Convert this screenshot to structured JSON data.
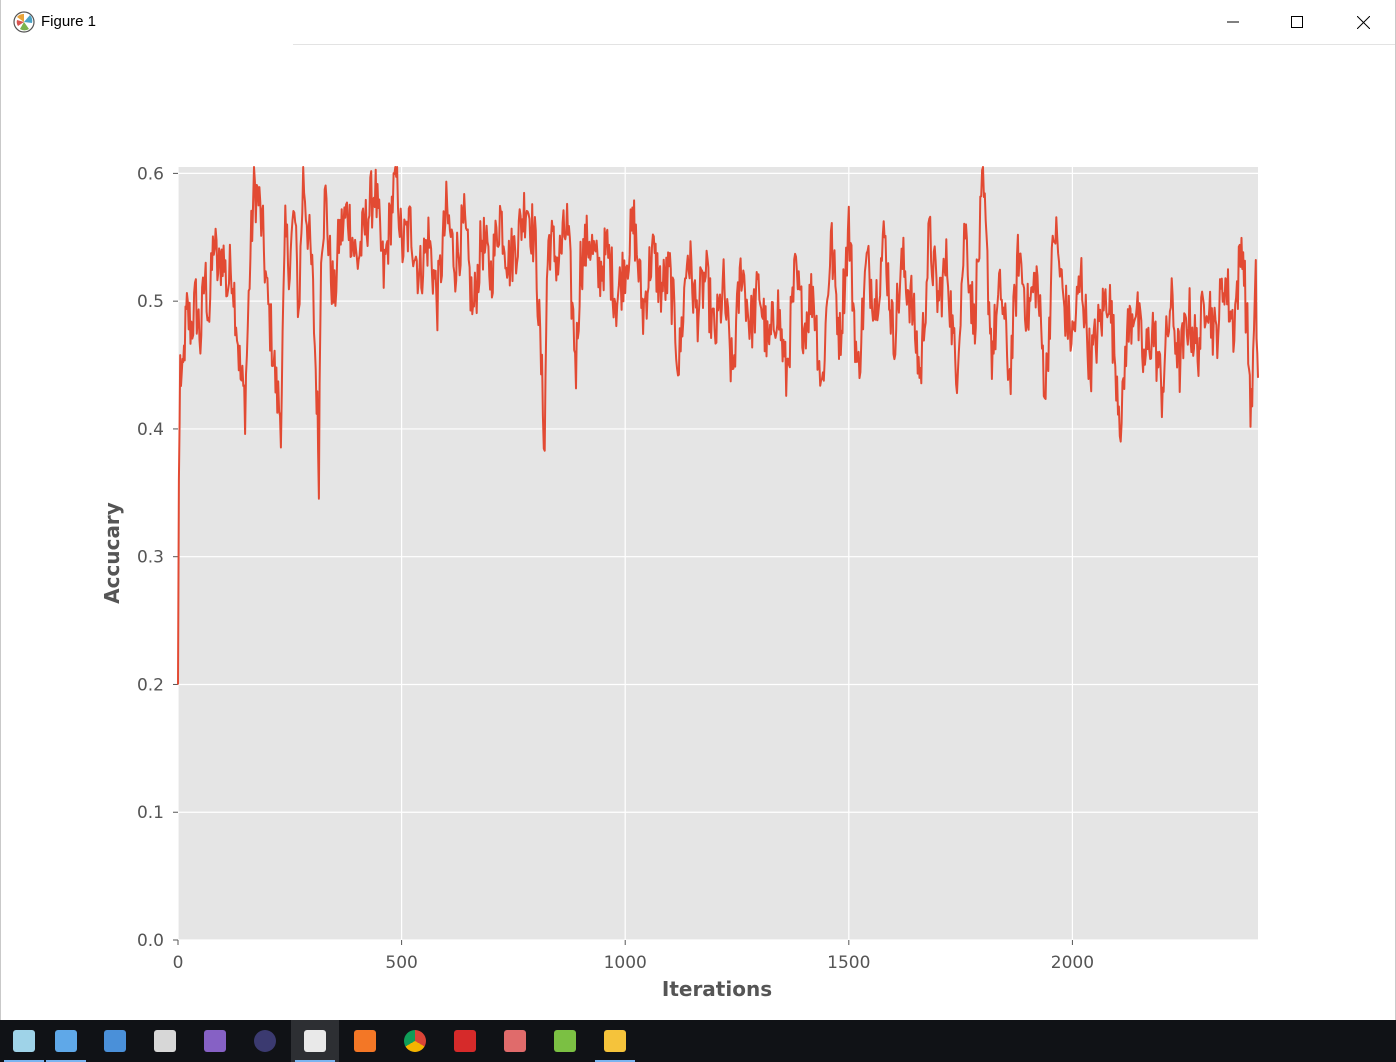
{
  "window": {
    "title": "Figure 1",
    "controls": {
      "minimize": "minimize",
      "maximize": "maximize",
      "close": "close"
    }
  },
  "chart_data": {
    "type": "line",
    "title": "",
    "xlabel": "Iterations",
    "ylabel": "Accucary",
    "xlim": [
      0,
      2415
    ],
    "ylim": [
      0.0,
      0.605
    ],
    "xticks": [
      0,
      500,
      1000,
      1500,
      2000
    ],
    "yticks": [
      0.0,
      0.1,
      0.2,
      0.3,
      0.4,
      0.5,
      0.6
    ],
    "xtick_labels": [
      "0",
      "500",
      "1000",
      "1500",
      "2000"
    ],
    "ytick_labels": [
      "0.0",
      "0.1",
      "0.2",
      "0.3",
      "0.4",
      "0.5",
      "0.6"
    ],
    "grid": true,
    "style": "ggplot",
    "series_color": "#e24a33",
    "series": [
      {
        "name": "",
        "x": [
          0,
          2,
          5,
          10,
          15,
          20,
          30,
          40,
          50,
          60,
          70,
          80,
          90,
          100,
          110,
          120,
          130,
          140,
          150,
          160,
          170,
          180,
          190,
          200,
          210,
          220,
          230,
          240,
          250,
          260,
          270,
          280,
          290,
          300,
          310,
          315,
          320,
          330,
          340,
          350,
          360,
          380,
          400,
          420,
          440,
          460,
          480,
          490,
          500,
          520,
          540,
          560,
          580,
          600,
          620,
          640,
          660,
          680,
          700,
          720,
          740,
          760,
          780,
          800,
          820,
          825,
          830,
          850,
          870,
          890,
          900,
          920,
          940,
          960,
          980,
          1000,
          1020,
          1040,
          1060,
          1080,
          1100,
          1120,
          1140,
          1160,
          1180,
          1200,
          1220,
          1240,
          1260,
          1280,
          1300,
          1320,
          1340,
          1360,
          1380,
          1400,
          1420,
          1440,
          1460,
          1480,
          1500,
          1520,
          1540,
          1560,
          1580,
          1600,
          1620,
          1640,
          1660,
          1680,
          1700,
          1720,
          1740,
          1760,
          1780,
          1800,
          1820,
          1840,
          1860,
          1880,
          1900,
          1920,
          1940,
          1960,
          1980,
          2000,
          2020,
          2040,
          2060,
          2080,
          2100,
          2110,
          2120,
          2140,
          2160,
          2180,
          2200,
          2220,
          2240,
          2260,
          2280,
          2300,
          2320,
          2340,
          2360,
          2380,
          2395,
          2400,
          2410,
          2415
        ],
        "y": [
          0.2,
          0.36,
          0.45,
          0.43,
          0.47,
          0.49,
          0.48,
          0.5,
          0.47,
          0.52,
          0.49,
          0.55,
          0.52,
          0.54,
          0.51,
          0.53,
          0.49,
          0.44,
          0.42,
          0.52,
          0.59,
          0.58,
          0.55,
          0.5,
          0.47,
          0.43,
          0.41,
          0.55,
          0.53,
          0.57,
          0.49,
          0.6,
          0.56,
          0.52,
          0.43,
          0.37,
          0.55,
          0.58,
          0.53,
          0.5,
          0.55,
          0.57,
          0.53,
          0.56,
          0.59,
          0.52,
          0.58,
          0.6,
          0.54,
          0.56,
          0.52,
          0.55,
          0.5,
          0.57,
          0.53,
          0.56,
          0.49,
          0.55,
          0.52,
          0.57,
          0.53,
          0.55,
          0.58,
          0.54,
          0.39,
          0.52,
          0.55,
          0.53,
          0.56,
          0.45,
          0.53,
          0.55,
          0.52,
          0.54,
          0.5,
          0.53,
          0.56,
          0.49,
          0.54,
          0.51,
          0.52,
          0.45,
          0.54,
          0.49,
          0.52,
          0.47,
          0.51,
          0.44,
          0.53,
          0.48,
          0.51,
          0.46,
          0.5,
          0.44,
          0.52,
          0.48,
          0.51,
          0.43,
          0.55,
          0.47,
          0.56,
          0.44,
          0.53,
          0.5,
          0.55,
          0.47,
          0.53,
          0.5,
          0.44,
          0.55,
          0.5,
          0.53,
          0.44,
          0.56,
          0.48,
          0.59,
          0.46,
          0.51,
          0.44,
          0.54,
          0.49,
          0.52,
          0.43,
          0.56,
          0.5,
          0.47,
          0.52,
          0.45,
          0.48,
          0.51,
          0.44,
          0.4,
          0.47,
          0.5,
          0.45,
          0.48,
          0.43,
          0.5,
          0.45,
          0.49,
          0.46,
          0.51,
          0.47,
          0.52,
          0.48,
          0.55,
          0.45,
          0.41,
          0.51,
          0.44
        ]
      }
    ]
  },
  "taskbar": {
    "items": [
      {
        "name": "notepadpp-icon",
        "color": "#9fd3e8"
      },
      {
        "name": "this-pc-icon",
        "color": "#5fa8e8"
      },
      {
        "name": "control-panel-icon",
        "color": "#4a90d9"
      },
      {
        "name": "remote-desktop-icon",
        "color": "#d7d7d7"
      },
      {
        "name": "visual-studio-icon",
        "color": "#8661c5"
      },
      {
        "name": "eclipse-icon",
        "color": "#3b3a70"
      },
      {
        "name": "python-icon",
        "color": "#e9e9e9"
      },
      {
        "name": "jupyter-icon",
        "color": "#f37726"
      },
      {
        "name": "chrome-icon",
        "color": "#4285f4"
      },
      {
        "name": "youtube-dl-icon",
        "color": "#d62a2a"
      },
      {
        "name": "paint-icon",
        "color": "#e06b6b"
      },
      {
        "name": "git-icon",
        "color": "#7bc043"
      },
      {
        "name": "file-explorer-icon",
        "color": "#f5c33b"
      }
    ]
  }
}
